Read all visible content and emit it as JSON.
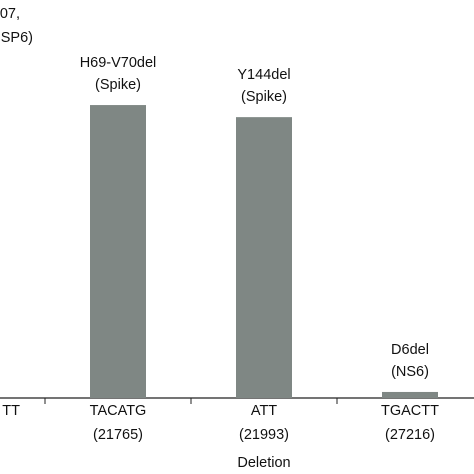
{
  "chart_data": {
    "type": "bar",
    "categories": [
      "TT",
      "TACATG",
      "ATT",
      "TGACTT"
    ],
    "positions": [
      null,
      "(21765)",
      "(21993)",
      "(27216)"
    ],
    "annotations": [
      [
        "07,",
        "SP6)"
      ],
      [
        "H69-V70del",
        "(Spike)"
      ],
      [
        "Y144del",
        "(Spike)"
      ],
      [
        "D6del",
        "(NS6)"
      ]
    ],
    "values": [
      null,
      97,
      93,
      2
    ],
    "color": "#7f8784",
    "ylim": [
      0,
      100
    ],
    "xlabel": "Deletion"
  }
}
